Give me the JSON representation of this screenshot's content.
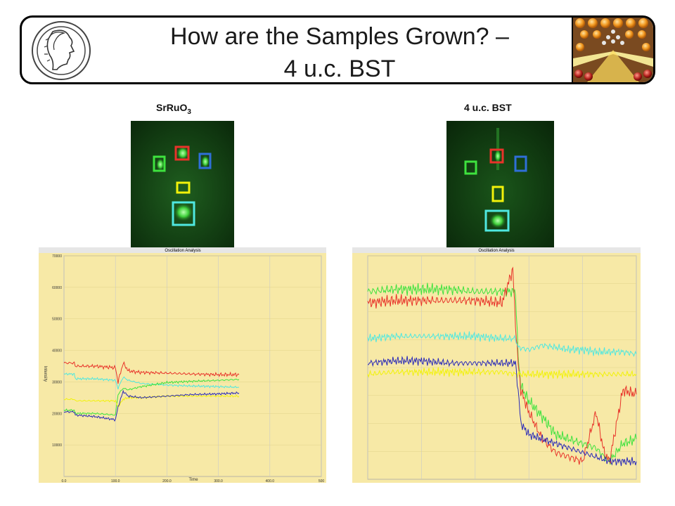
{
  "title": {
    "line1": "How are the Samples Grown? –",
    "line2": "4 u.c. BST"
  },
  "left_panel": {
    "label_main": "SrRuO",
    "label_sub": "3",
    "chart_title": "Oscillation Analysis",
    "x_label": "Time",
    "y_label": "Intensity"
  },
  "right_panel": {
    "label": "4 u.c. BST",
    "chart_title": "Oscillation Analysis"
  },
  "colors": {
    "plot_bg": "#f7e9a6",
    "red": "#e8332a",
    "green": "#3ee23e",
    "cyan": "#4fe8e0",
    "blue": "#2b2bb8",
    "yellow": "#f2f20a"
  },
  "chart_data": [
    {
      "type": "line",
      "title": "Oscillation Analysis",
      "xlabel": "Time",
      "ylabel": "Intensity",
      "xlim": [
        0,
        500
      ],
      "ylim": [
        0,
        70000
      ],
      "x_ticks": [
        "0.0",
        "100.0",
        "200.0",
        "300.0",
        "400.0",
        "500"
      ],
      "y_ticks": [
        "10000",
        "20000",
        "30000",
        "40000",
        "50000",
        "60000",
        "70000"
      ],
      "series": [
        {
          "color": "red",
          "x": [
            0,
            20,
            22,
            60,
            100,
            105,
            115,
            125,
            150,
            200,
            250,
            300,
            340
          ],
          "values": [
            36000,
            36000,
            35000,
            35000,
            34500,
            30000,
            36000,
            33500,
            33000,
            32800,
            32500,
            32300,
            32300
          ]
        },
        {
          "color": "cyan",
          "x": [
            0,
            20,
            22,
            60,
            100,
            105,
            115,
            125,
            150,
            200,
            250,
            300,
            340
          ],
          "values": [
            32500,
            32500,
            31000,
            31000,
            30500,
            28000,
            31500,
            30500,
            29500,
            29000,
            28700,
            28500,
            28300
          ]
        },
        {
          "color": "green",
          "x": [
            0,
            20,
            22,
            60,
            100,
            105,
            115,
            125,
            150,
            200,
            250,
            300,
            340
          ],
          "values": [
            21000,
            21000,
            20000,
            20000,
            19500,
            26000,
            28000,
            27500,
            28500,
            29800,
            30200,
            30500,
            30800
          ]
        },
        {
          "color": "yellow",
          "x": [
            0,
            20,
            22,
            60,
            100,
            105,
            115,
            125,
            150,
            200,
            250,
            300,
            340
          ],
          "values": [
            24500,
            24500,
            24000,
            24000,
            24000,
            22000,
            24500,
            25000,
            25000,
            25500,
            25500,
            25500,
            25500
          ]
        },
        {
          "color": "blue",
          "x": [
            0,
            20,
            22,
            60,
            100,
            105,
            115,
            125,
            150,
            200,
            250,
            300,
            340
          ],
          "values": [
            20500,
            20500,
            19500,
            19000,
            18000,
            22000,
            27000,
            25500,
            25000,
            25500,
            26000,
            26200,
            26500
          ]
        }
      ]
    },
    {
      "type": "line",
      "title": "Oscillation Analysis",
      "xlim": [
        0,
        100
      ],
      "ylim": [
        0,
        100
      ],
      "series": [
        {
          "color": "green",
          "x": [
            0,
            10,
            20,
            30,
            40,
            50,
            55,
            56,
            57,
            60,
            65,
            70,
            75,
            80,
            85,
            88,
            90,
            95,
            100
          ],
          "values": [
            84,
            85,
            85,
            85,
            84,
            84,
            84,
            55,
            42,
            35,
            28,
            20,
            18,
            16,
            14,
            10,
            8,
            16,
            18
          ]
        },
        {
          "color": "red",
          "x": [
            0,
            10,
            20,
            30,
            40,
            50,
            54,
            55,
            56,
            57,
            60,
            65,
            70,
            75,
            80,
            85,
            88,
            90,
            95,
            100
          ],
          "values": [
            79,
            80,
            80,
            80,
            80,
            79,
            94,
            70,
            52,
            40,
            30,
            18,
            12,
            10,
            8,
            30,
            12,
            8,
            40,
            38
          ]
        },
        {
          "color": "cyan",
          "x": [
            0,
            10,
            20,
            30,
            40,
            50,
            55,
            56,
            60,
            65,
            70,
            75,
            80,
            85,
            90,
            95,
            100
          ],
          "values": [
            63,
            64,
            64,
            64,
            64,
            63,
            63,
            59,
            58,
            60,
            59,
            58,
            58,
            57,
            57,
            57,
            56
          ]
        },
        {
          "color": "yellow",
          "x": [
            0,
            10,
            20,
            30,
            40,
            50,
            55,
            56,
            60,
            70,
            80,
            90,
            100
          ],
          "values": [
            47,
            48,
            48,
            48,
            48,
            48,
            47,
            47,
            47,
            47,
            47,
            47,
            47
          ]
        },
        {
          "color": "blue",
          "x": [
            0,
            10,
            20,
            30,
            40,
            50,
            55,
            56,
            57,
            60,
            65,
            70,
            75,
            80,
            85,
            90,
            95,
            100
          ],
          "values": [
            52,
            53,
            53,
            52,
            52,
            52,
            52,
            40,
            25,
            20,
            18,
            16,
            14,
            12,
            10,
            8,
            8,
            8
          ]
        }
      ]
    }
  ]
}
